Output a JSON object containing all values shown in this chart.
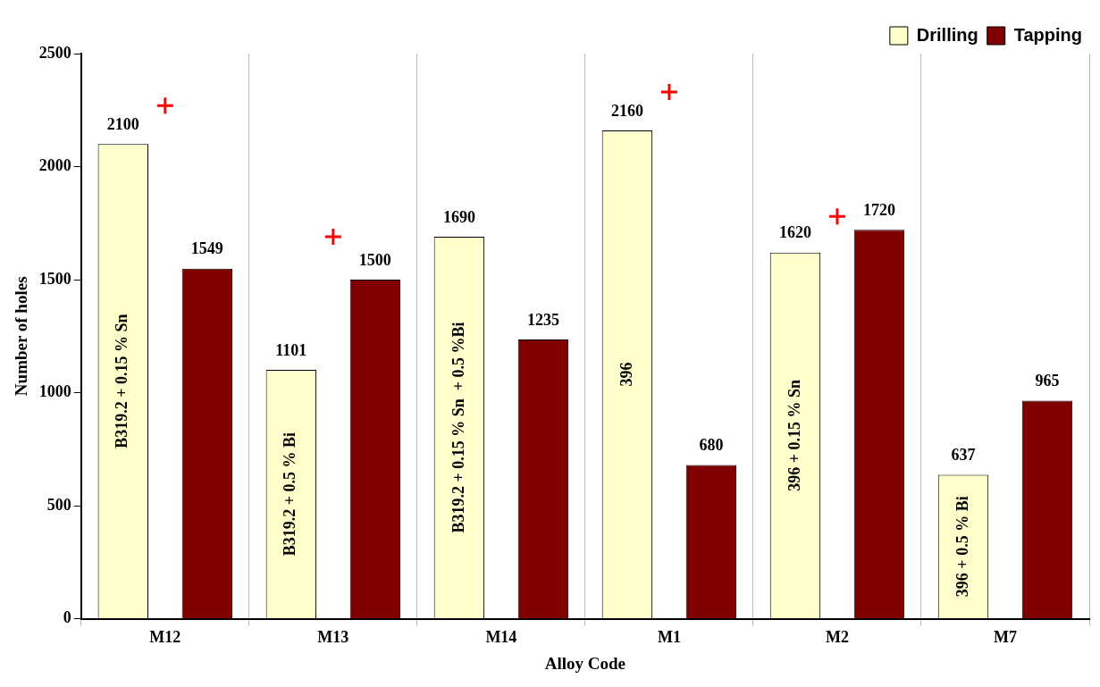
{
  "chart_data": {
    "type": "bar",
    "xlabel": "Alloy Code",
    "ylabel": "Number of holes",
    "categories": [
      "M12",
      "M13",
      "M14",
      "M1",
      "M2",
      "M7"
    ],
    "series": [
      {
        "name": "Drilling",
        "color": "#ffffcc",
        "values": [
          2100,
          1101,
          1690,
          2160,
          1620,
          637
        ],
        "value_labels": [
          "2100",
          "1101",
          "1690",
          "2160",
          "1620",
          "637"
        ]
      },
      {
        "name": "Tapping",
        "color": "#800000",
        "values": [
          1549,
          1500,
          1235,
          680,
          1720,
          965
        ],
        "value_labels": [
          "1549",
          "1500",
          "1235",
          "680",
          "1720",
          "965"
        ]
      },
      {
        "type": "scatter",
        "marker": "cross",
        "color": "#ff0000",
        "x": [
          "M12",
          "M13",
          "M1",
          "M2"
        ],
        "values": [
          2270,
          1690,
          2330,
          1780
        ]
      }
    ],
    "ylim": [
      0,
      2500
    ],
    "yticks": [
      0,
      500,
      1000,
      1500,
      2000,
      2500
    ],
    "grid": "x",
    "legend": "top right",
    "annotations": [
      "B319.2 + 0.15 % Sn",
      "B319.2 + 0.5 % Bi",
      "B319.2 + 0.15 % Sn  + 0.5 %Bi",
      "396",
      "396 + 0.15 % Sn",
      "396 + 0.5 % Bi"
    ]
  }
}
